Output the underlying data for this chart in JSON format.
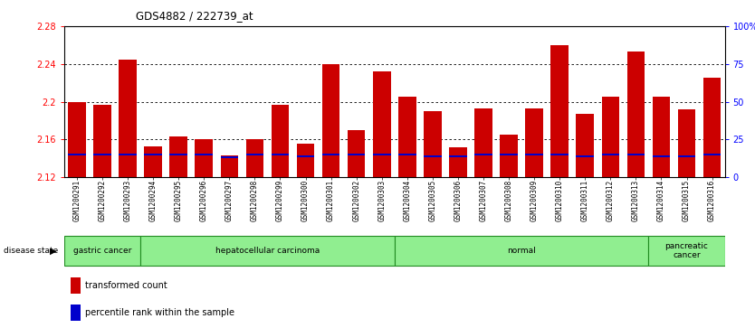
{
  "title": "GDS4882 / 222739_at",
  "samples": [
    "GSM1200291",
    "GSM1200292",
    "GSM1200293",
    "GSM1200294",
    "GSM1200295",
    "GSM1200296",
    "GSM1200297",
    "GSM1200298",
    "GSM1200299",
    "GSM1200300",
    "GSM1200301",
    "GSM1200302",
    "GSM1200303",
    "GSM1200304",
    "GSM1200305",
    "GSM1200306",
    "GSM1200307",
    "GSM1200308",
    "GSM1200309",
    "GSM1200310",
    "GSM1200311",
    "GSM1200312",
    "GSM1200313",
    "GSM1200314",
    "GSM1200315",
    "GSM1200316"
  ],
  "transformed_count": [
    2.2,
    2.197,
    2.245,
    2.153,
    2.163,
    2.16,
    2.143,
    2.16,
    2.197,
    2.155,
    2.24,
    2.17,
    2.232,
    2.205,
    2.19,
    2.152,
    2.193,
    2.165,
    2.193,
    2.26,
    2.187,
    2.205,
    2.253,
    2.205,
    2.192,
    2.225
  ],
  "percentile_rank": [
    15,
    15,
    15,
    15,
    15,
    15,
    13,
    15,
    15,
    14,
    15,
    15,
    15,
    15,
    14,
    14,
    15,
    15,
    15,
    15,
    14,
    15,
    15,
    14,
    14,
    15
  ],
  "disease_groups": [
    {
      "label": "gastric cancer",
      "start": 0,
      "end": 3
    },
    {
      "label": "hepatocellular carcinoma",
      "start": 3,
      "end": 13
    },
    {
      "label": "normal",
      "start": 13,
      "end": 23
    },
    {
      "label": "pancreatic\ncancer",
      "start": 23,
      "end": 26
    }
  ],
  "ylim_left": [
    2.12,
    2.28
  ],
  "ylim_right": [
    0,
    100
  ],
  "yticks_left": [
    2.12,
    2.16,
    2.2,
    2.24,
    2.28
  ],
  "yticks_right": [
    0,
    25,
    50,
    75,
    100
  ],
  "ytick_labels_right": [
    "0",
    "25",
    "50",
    "75",
    "100%"
  ],
  "bar_color": "#cc0000",
  "percentile_color": "#0000cc",
  "baseline": 2.12,
  "green_color": "#90ee90",
  "green_border": "#228B22"
}
